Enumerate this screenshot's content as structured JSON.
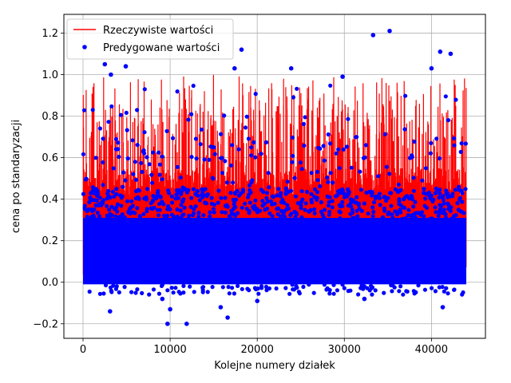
{
  "chart_data": {
    "type": "scatter",
    "title": "",
    "xlabel": "Kolejne numery działek",
    "ylabel": "cena po standaryzacji",
    "xlim": [
      -2200,
      46200
    ],
    "ylim": [
      -0.27,
      1.29
    ],
    "xticks": [
      0,
      10000,
      20000,
      30000,
      40000
    ],
    "yticks": [
      -0.2,
      0.0,
      0.2,
      0.4,
      0.6,
      0.8,
      1.0,
      1.2
    ],
    "grid": true,
    "legend": "top-left",
    "n_points": 44000,
    "series": [
      {
        "name": "Rzeczywiste wartości",
        "kind": "line",
        "color": "#ff0000",
        "typical_range": [
          0.02,
          0.4
        ],
        "max": 1.0
      },
      {
        "name": "Predygowane wartości",
        "kind": "points",
        "color": "#0000ff",
        "typical_range": [
          0.0,
          0.3
        ],
        "min": -0.2,
        "max": 1.21,
        "outliers": [
          [
            33300,
            1.19
          ],
          [
            35200,
            1.21
          ],
          [
            41000,
            1.11
          ],
          [
            42200,
            1.1
          ],
          [
            2500,
            1.05
          ],
          [
            4900,
            1.04
          ],
          [
            40000,
            1.03
          ],
          [
            17400,
            1.03
          ],
          [
            18200,
            1.12
          ],
          [
            3200,
            1.0
          ],
          [
            29800,
            0.99
          ],
          [
            23900,
            1.03
          ],
          [
            9700,
            -0.2
          ],
          [
            11900,
            -0.2
          ],
          [
            3100,
            -0.14
          ],
          [
            10000,
            -0.13
          ],
          [
            16600,
            -0.17
          ],
          [
            15800,
            -0.12
          ],
          [
            41300,
            -0.12
          ],
          [
            32300,
            -0.08
          ],
          [
            20000,
            -0.09
          ],
          [
            9100,
            -0.08
          ]
        ]
      }
    ]
  }
}
